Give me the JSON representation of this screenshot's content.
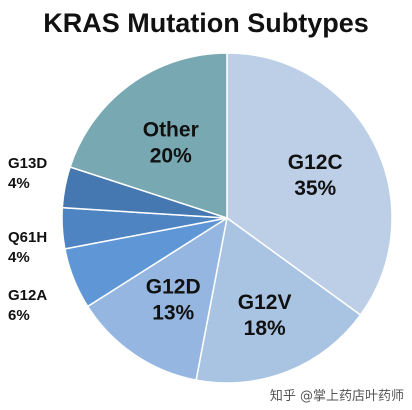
{
  "chart_data": {
    "type": "pie",
    "title": "KRAS Mutation Subtypes",
    "start_angle_deg": 0,
    "direction": "clockwise",
    "slices": [
      {
        "name": "G12C",
        "value": 35,
        "label": "35%",
        "color": "#bccfe6"
      },
      {
        "name": "G12V",
        "value": 18,
        "label": "18%",
        "color": "#a9c3e2"
      },
      {
        "name": "G12D",
        "value": 13,
        "label": "13%",
        "color": "#94b6e0"
      },
      {
        "name": "G12A",
        "value": 6,
        "label": "6%",
        "color": "#5f97d6"
      },
      {
        "name": "Q61H",
        "value": 4,
        "label": "4%",
        "color": "#4f84c2"
      },
      {
        "name": "G13D",
        "value": 4,
        "label": "4%",
        "color": "#4577b0"
      },
      {
        "name": "Other",
        "value": 20,
        "label": "20%",
        "color": "#78a9b3"
      }
    ]
  },
  "watermark": "知乎 @掌上药店叶药师"
}
